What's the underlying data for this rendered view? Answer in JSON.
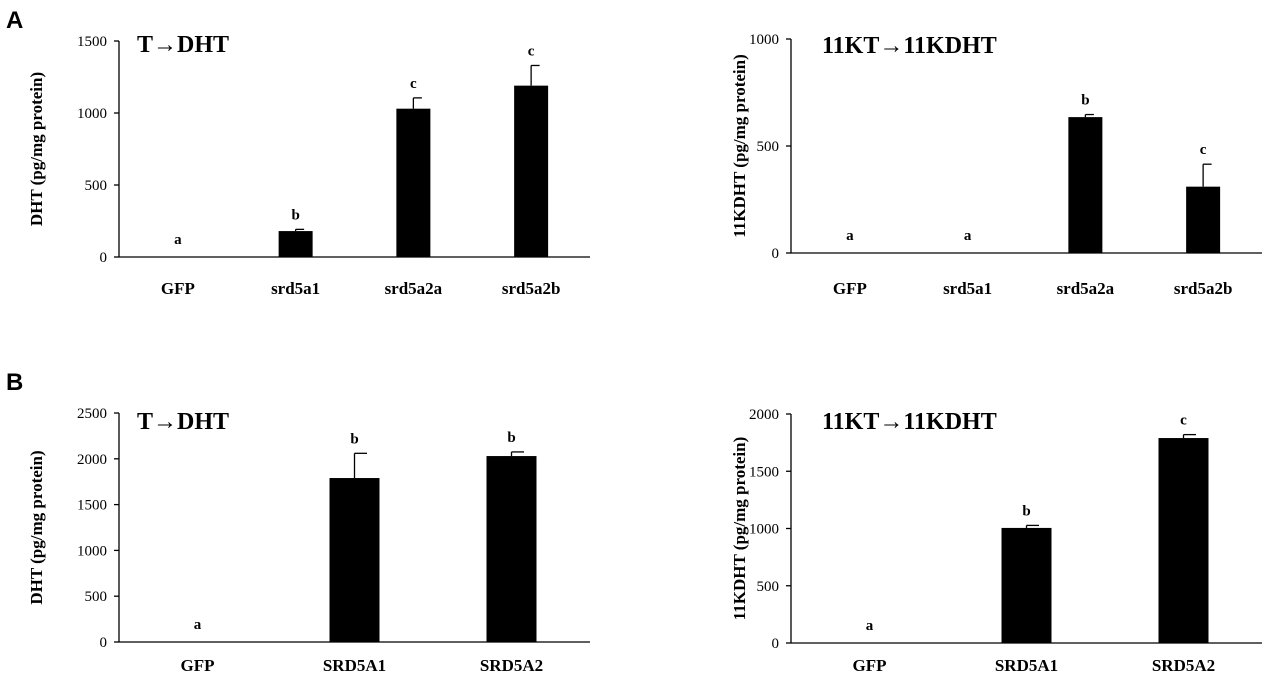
{
  "panel_letters": [
    "A",
    "B"
  ],
  "chart_data": [
    {
      "type": "bar",
      "panel": "A",
      "title": "T→DHT",
      "ylabel": "DHT (pg/mg protein)",
      "xlabel": "",
      "ylim": [
        0,
        1500
      ],
      "yticks": [
        0,
        500,
        1000,
        1500
      ],
      "categories": [
        "GFP",
        "srd5a1",
        "srd5a2a",
        "srd5a2b"
      ],
      "values": [
        0,
        180,
        1030,
        1190
      ],
      "errors": [
        0,
        12,
        75,
        140
      ],
      "significance": [
        "a",
        "b",
        "c",
        "c"
      ]
    },
    {
      "type": "bar",
      "panel": "A",
      "title": "11KT→11KDHT",
      "ylabel": "11KDHT (pg/mg protein)",
      "xlabel": "",
      "ylim": [
        0,
        1000
      ],
      "yticks": [
        0,
        500,
        1000
      ],
      "categories": [
        "GFP",
        "srd5a1",
        "srd5a2a",
        "srd5a2b"
      ],
      "values": [
        0,
        0,
        635,
        310
      ],
      "errors": [
        0,
        0,
        12,
        105
      ],
      "significance": [
        "a",
        "a",
        "b",
        "c"
      ]
    },
    {
      "type": "bar",
      "panel": "B",
      "title": "T→DHT",
      "ylabel": "DHT (pg/mg protein)",
      "xlabel": "",
      "ylim": [
        0,
        2500
      ],
      "yticks": [
        0,
        500,
        1000,
        1500,
        2000,
        2500
      ],
      "categories": [
        "GFP",
        "SRD5A1",
        "SRD5A2"
      ],
      "values": [
        0,
        1790,
        2030
      ],
      "errors": [
        0,
        270,
        45
      ],
      "significance": [
        "a",
        "b",
        "b"
      ]
    },
    {
      "type": "bar",
      "panel": "B",
      "title": "11KT→11KDHT",
      "ylabel": "11KDHT (pg/mg protein)",
      "xlabel": "",
      "ylim": [
        0,
        2000
      ],
      "yticks": [
        0,
        500,
        1000,
        1500,
        2000
      ],
      "categories": [
        "GFP",
        "SRD5A1",
        "SRD5A2"
      ],
      "values": [
        0,
        1005,
        1790
      ],
      "errors": [
        0,
        22,
        30
      ],
      "significance": [
        "a",
        "b",
        "c"
      ]
    }
  ]
}
